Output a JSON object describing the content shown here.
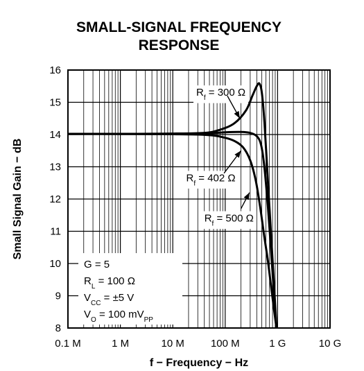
{
  "chart_data": {
    "type": "line",
    "title": "SMALL-SIGNAL FREQUENCY",
    "subtitle": "RESPONSE",
    "xlabel": "f − Frequency − Hz",
    "ylabel": "Small Signal Gain − dB",
    "x_scale": "log",
    "xlim": [
      100000,
      10000000000
    ],
    "ylim": [
      8,
      16
    ],
    "grid": true,
    "x_ticks": [
      {
        "value": 100000,
        "label": "0.1 M"
      },
      {
        "value": 1000000,
        "label": "1 M"
      },
      {
        "value": 10000000,
        "label": "10 M"
      },
      {
        "value": 100000000,
        "label": "100 M"
      },
      {
        "value": 1000000000,
        "label": "1 G"
      },
      {
        "value": 10000000000,
        "label": "10 G"
      }
    ],
    "y_ticks": [
      {
        "value": 8,
        "label": "8"
      },
      {
        "value": 9,
        "label": "9"
      },
      {
        "value": 10,
        "label": "10"
      },
      {
        "value": 11,
        "label": "11"
      },
      {
        "value": 12,
        "label": "12"
      },
      {
        "value": 13,
        "label": "13"
      },
      {
        "value": 14,
        "label": "14"
      },
      {
        "value": 15,
        "label": "15"
      },
      {
        "value": 16,
        "label": "16"
      }
    ],
    "series": [
      {
        "name": "R",
        "sub": "f",
        "suffix": " = 300 Ω",
        "label_x": 28000000,
        "label_y": 15.2,
        "arrow_from": [
          110000000,
          15.2
        ],
        "arrow_to": [
          190000000,
          14.5
        ],
        "x": [
          100000,
          1000000,
          10000000,
          40000000,
          80000000,
          150000000,
          250000000,
          330000000,
          400000000,
          450000000,
          500000000,
          560000000,
          650000000,
          750000000,
          850000000,
          950000000
        ],
        "y": [
          14.02,
          14.02,
          14.03,
          14.05,
          14.15,
          14.35,
          14.75,
          15.2,
          15.5,
          15.58,
          15.3,
          14.4,
          12.6,
          10.9,
          9.4,
          8.0
        ]
      },
      {
        "name": "R",
        "sub": "f",
        "suffix": " = 402 Ω",
        "label_x": 18000000,
        "label_y": 12.55,
        "arrow_from": [
          95000000,
          12.8
        ],
        "arrow_to": [
          200000000,
          13.5
        ],
        "x": [
          100000,
          1000000,
          10000000,
          40000000,
          100000000,
          200000000,
          300000000,
          400000000,
          480000000,
          550000000,
          650000000,
          750000000,
          850000000,
          950000000
        ],
        "y": [
          14.02,
          14.02,
          14.02,
          14.03,
          14.07,
          14.08,
          14.05,
          13.95,
          13.7,
          13.1,
          11.8,
          10.4,
          9.1,
          8.0
        ]
      },
      {
        "name": "R",
        "sub": "f",
        "suffix": " = 500 Ω",
        "label_x": 40000000,
        "label_y": 11.3,
        "arrow_from": [
          200000000,
          11.7
        ],
        "arrow_to": [
          290000000,
          12.2
        ],
        "x": [
          100000,
          1000000,
          10000000,
          30000000,
          60000000,
          100000000,
          150000000,
          220000000,
          300000000,
          380000000,
          460000000,
          550000000,
          650000000,
          750000000,
          850000000,
          950000000
        ],
        "y": [
          14.02,
          14.02,
          14.01,
          14.0,
          13.97,
          13.9,
          13.8,
          13.6,
          13.2,
          12.6,
          11.8,
          10.9,
          10.1,
          9.3,
          8.6,
          8.0
        ]
      }
    ],
    "conditions": [
      {
        "main": "G = 5",
        "sub": "",
        "rest": ""
      },
      {
        "main": "R",
        "sub": "L",
        "rest": " = 100 Ω"
      },
      {
        "main": "V",
        "sub": "CC",
        "rest": " = ±5 V"
      },
      {
        "main": "V",
        "sub": "O",
        "rest": " = 100 mV",
        "sub2": "PP"
      }
    ]
  }
}
